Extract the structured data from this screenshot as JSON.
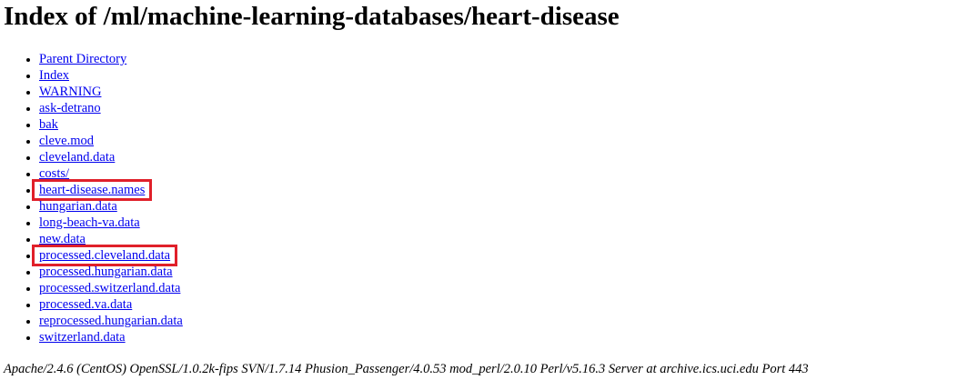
{
  "page": {
    "title": "Index of /ml/machine-learning-databases/heart-disease"
  },
  "files": [
    {
      "label": "Parent Directory",
      "highlighted": false
    },
    {
      "label": "Index",
      "highlighted": false
    },
    {
      "label": "WARNING",
      "highlighted": false
    },
    {
      "label": "ask-detrano",
      "highlighted": false
    },
    {
      "label": "bak",
      "highlighted": false
    },
    {
      "label": "cleve.mod",
      "highlighted": false
    },
    {
      "label": "cleveland.data",
      "highlighted": false
    },
    {
      "label": "costs/",
      "highlighted": false
    },
    {
      "label": "heart-disease.names",
      "highlighted": true
    },
    {
      "label": "hungarian.data",
      "highlighted": false
    },
    {
      "label": "long-beach-va.data",
      "highlighted": false
    },
    {
      "label": "new.data",
      "highlighted": false
    },
    {
      "label": "processed.cleveland.data",
      "highlighted": true
    },
    {
      "label": "processed.hungarian.data",
      "highlighted": false
    },
    {
      "label": "processed.switzerland.data",
      "highlighted": false
    },
    {
      "label": "processed.va.data",
      "highlighted": false
    },
    {
      "label": "reprocessed.hungarian.data",
      "highlighted": false
    },
    {
      "label": "switzerland.data",
      "highlighted": false
    }
  ],
  "footer": {
    "server_signature": "Apache/2.4.6 (CentOS) OpenSSL/1.0.2k-fips SVN/1.7.14 Phusion_Passenger/4.0.53 mod_perl/2.0.10 Perl/v5.16.3 Server at archive.ics.uci.edu Port 443"
  },
  "colors": {
    "link": "#0000ee",
    "highlight_box": "#e0202a"
  }
}
